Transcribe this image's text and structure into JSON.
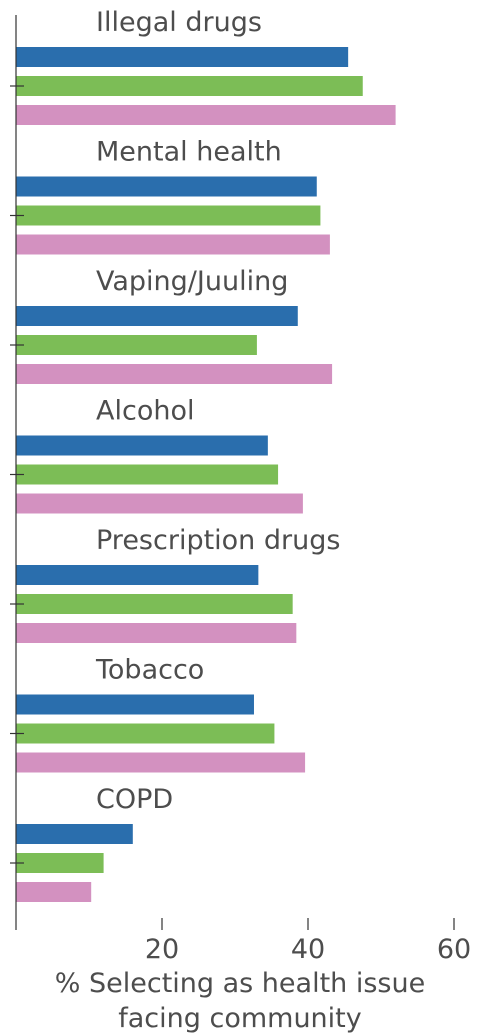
{
  "chart_data": {
    "type": "bar",
    "orientation": "horizontal",
    "categories": [
      "Illegal drugs",
      "Mental health",
      "Vaping/Juuling",
      "Alcohol",
      "Prescription drugs",
      "Tobacco",
      "COPD"
    ],
    "series": [
      {
        "values": [
          45.5,
          41.2,
          38.6,
          34.5,
          33.2,
          32.6,
          16.0
        ],
        "color": "#2a6ead"
      },
      {
        "values": [
          47.5,
          41.7,
          33.0,
          35.9,
          37.9,
          35.4,
          12.0
        ],
        "color": "#7cbd56"
      },
      {
        "values": [
          52.0,
          43.0,
          43.3,
          39.3,
          38.4,
          39.6,
          10.3
        ],
        "color": "#d391c0"
      }
    ],
    "xlabel": [
      "% Selecting as health issue",
      "facing community"
    ],
    "xlim": [
      0,
      60
    ],
    "xticks": [
      20,
      40,
      60
    ],
    "grid": false
  }
}
